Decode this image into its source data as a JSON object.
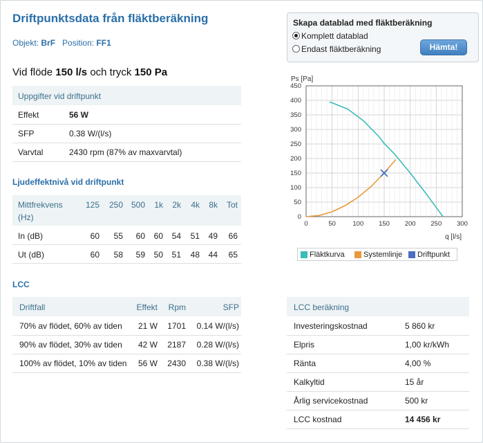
{
  "header": {
    "title": "Driftpunktsdata från fläktberäkning",
    "object_label": "Objekt:",
    "object_value": "BrF",
    "position_label": "Position:",
    "position_value": "FF1",
    "flow_prefix": "Vid flöde",
    "flow_value": "150 l/s",
    "pressure_mid": "och tryck",
    "pressure_value": "150 Pa"
  },
  "datablad": {
    "title": "Skapa datablad med fläktberäkning",
    "options": [
      {
        "label": "Komplett datablad",
        "selected": true
      },
      {
        "label": "Endast fläktberäkning",
        "selected": false
      }
    ],
    "button": "Hämta!"
  },
  "driftpunkt": {
    "heading": "Uppgifter vid driftpunkt",
    "rows": [
      {
        "label": "Effekt",
        "value": "56 W"
      },
      {
        "label": "SFP",
        "value": "0.38 W/(l/s)"
      },
      {
        "label": "Varvtal",
        "value": "2430 rpm (87% av maxvarvtal)"
      }
    ]
  },
  "ljud": {
    "heading": "Ljudeffektnivå vid driftpunkt",
    "col_label_1": "Mittfrekvens",
    "col_label_2": "(Hz)",
    "freqs": [
      "125",
      "250",
      "500",
      "1k",
      "2k",
      "4k",
      "8k",
      "Tot"
    ],
    "rows": [
      {
        "label": "In (dB)",
        "values": [
          "60",
          "55",
          "60",
          "60",
          "54",
          "51",
          "49",
          "66"
        ]
      },
      {
        "label": "Ut (dB)",
        "values": [
          "60",
          "58",
          "59",
          "50",
          "51",
          "48",
          "44",
          "65"
        ]
      }
    ]
  },
  "lcc": {
    "heading": "LCC",
    "columns": [
      "Driftfall",
      "Effekt",
      "Rpm",
      "SFP"
    ],
    "rows": [
      {
        "driftfall": "70% av flödet, 60% av tiden",
        "effekt": "21 W",
        "rpm": "1701",
        "sfp": "0.14 W/(l/s)"
      },
      {
        "driftfall": "90% av flödet, 30% av tiden",
        "effekt": "42 W",
        "rpm": "2187",
        "sfp": "0.28 W/(l/s)"
      },
      {
        "driftfall": "100% av flödet, 10% av tiden",
        "effekt": "56 W",
        "rpm": "2430",
        "sfp": "0.38 W/(l/s)"
      }
    ]
  },
  "lcc_calc": {
    "heading": "LCC beräkning",
    "rows": [
      {
        "label": "Investeringskostnad",
        "value": "5 860 kr",
        "bold": false
      },
      {
        "label": "Elpris",
        "value": "1,00 kr/kWh",
        "bold": false
      },
      {
        "label": "Ränta",
        "value": "4,00 %",
        "bold": false
      },
      {
        "label": "Kalkyltid",
        "value": "15 år",
        "bold": false
      },
      {
        "label": "Årlig servicekostnad",
        "value": "500 kr",
        "bold": false
      },
      {
        "label": "LCC kostnad",
        "value": "14 456 kr",
        "bold": true
      }
    ]
  },
  "chart_data": {
    "type": "line",
    "ylabel": "Ps [Pa]",
    "xlabel": "q [l/s]",
    "xlim": [
      0,
      300
    ],
    "ylim": [
      0,
      450
    ],
    "x_ticks": [
      "0",
      "50",
      "100",
      "150",
      "200",
      "250",
      "300"
    ],
    "y_ticks": [
      "0",
      "50",
      "100",
      "150",
      "200",
      "250",
      "300",
      "350",
      "400",
      "450"
    ],
    "grid": true,
    "legend_position": "bottom",
    "series": [
      {
        "name": "Fläktkurva",
        "color": "#3cbcb8",
        "points": [
          [
            45,
            395
          ],
          [
            80,
            370
          ],
          [
            110,
            330
          ],
          [
            140,
            275
          ],
          [
            150,
            252
          ],
          [
            170,
            215
          ],
          [
            200,
            150
          ],
          [
            230,
            80
          ],
          [
            263,
            0
          ]
        ]
      },
      {
        "name": "Systemlinje",
        "color": "#e89a3a",
        "points": [
          [
            0,
            0
          ],
          [
            25,
            4
          ],
          [
            50,
            17
          ],
          [
            75,
            38
          ],
          [
            100,
            67
          ],
          [
            125,
            104
          ],
          [
            150,
            150
          ],
          [
            172,
            196
          ]
        ]
      },
      {
        "name": "Driftpunkt",
        "color": "#4a6fc0",
        "points": [
          [
            150,
            150
          ]
        ]
      }
    ]
  }
}
